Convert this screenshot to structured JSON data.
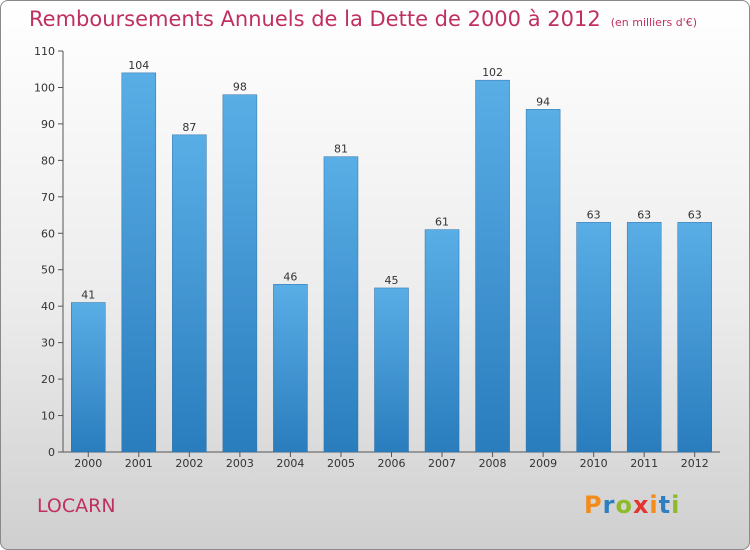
{
  "header": {
    "title": "Remboursements Annuels de la Dette de 2000 à 2012",
    "subtitle": "(en milliers d'€)"
  },
  "footer": {
    "commune": "LOCARN",
    "logo_text": "Proxiti"
  },
  "colors": {
    "accent": "#c0305f",
    "bar_top": "#5aaee6",
    "bar_bottom": "#2a7dbd"
  },
  "chart_data": {
    "type": "bar",
    "title": "Remboursements Annuels de la Dette de 2000 à 2012",
    "subtitle": "(en milliers d'€)",
    "xlabel": "",
    "ylabel": "",
    "categories": [
      "2000",
      "2001",
      "2002",
      "2003",
      "2004",
      "2005",
      "2006",
      "2007",
      "2008",
      "2009",
      "2010",
      "2011",
      "2012"
    ],
    "values": [
      41,
      104,
      87,
      98,
      46,
      81,
      45,
      61,
      102,
      94,
      63,
      63,
      63
    ],
    "ylim": [
      0,
      110
    ],
    "yticks": [
      0,
      10,
      20,
      30,
      40,
      50,
      60,
      70,
      80,
      90,
      100,
      110
    ],
    "grid": false,
    "legend": "none"
  }
}
